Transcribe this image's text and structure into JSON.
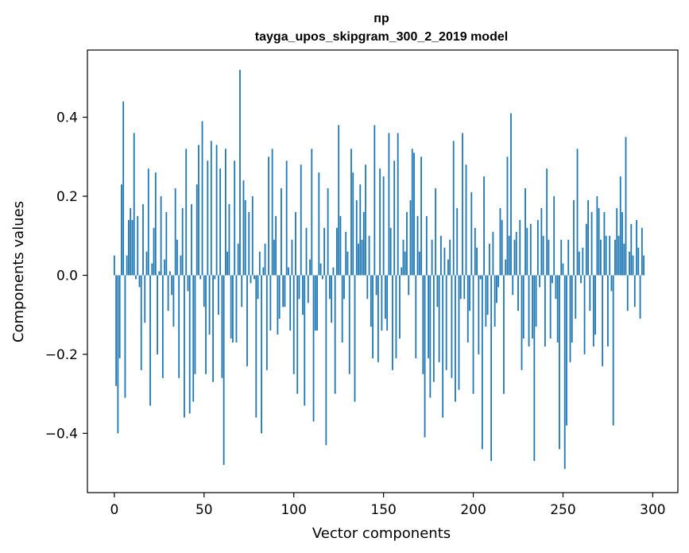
{
  "chart_data": {
    "type": "bar",
    "title": "пр",
    "subtitle": "tayga_upos_skipgram_300_2_2019 model",
    "xlabel": "Vector components",
    "ylabel": "Components values",
    "xlim": [
      -15,
      314
    ],
    "ylim": [
      -0.55,
      0.57
    ],
    "xticks": [
      0,
      50,
      100,
      150,
      200,
      250,
      300
    ],
    "yticks": [
      -0.4,
      -0.2,
      0.0,
      0.2,
      0.4
    ],
    "xtick_labels": [
      "0",
      "50",
      "100",
      "150",
      "200",
      "250",
      "300"
    ],
    "ytick_labels": [
      "−0.4",
      "−0.2",
      "0.0",
      "0.2",
      "0.4"
    ],
    "bar_color": "#1f77b4",
    "grid": false,
    "values": [
      0.05,
      -0.28,
      -0.4,
      -0.21,
      0.23,
      0.44,
      -0.31,
      0.05,
      0.14,
      0.17,
      0.14,
      0.36,
      -0.01,
      0.15,
      -0.03,
      -0.24,
      0.18,
      -0.12,
      0.06,
      0.27,
      -0.33,
      0.03,
      0.12,
      0.26,
      -0.2,
      0.01,
      0.2,
      -0.26,
      0.04,
      0.16,
      -0.09,
      0.01,
      -0.05,
      -0.13,
      0.22,
      0.09,
      -0.26,
      0.05,
      0.17,
      -0.36,
      0.32,
      -0.04,
      -0.35,
      0.18,
      -0.32,
      -0.25,
      0.23,
      0.33,
      -0.01,
      0.39,
      -0.08,
      -0.25,
      0.29,
      -0.15,
      0.34,
      -0.27,
      -0.01,
      0.33,
      -0.1,
      0.27,
      -0.26,
      -0.48,
      0.32,
      0.06,
      0.18,
      -0.16,
      -0.17,
      0.29,
      -0.17,
      0.08,
      0.52,
      -0.08,
      0.24,
      0.19,
      -0.23,
      0.16,
      -0.02,
      0.2,
      -0.01,
      -0.36,
      -0.06,
      0.06,
      -0.4,
      0.02,
      0.08,
      -0.24,
      0.3,
      -0.14,
      0.32,
      0.09,
      0.15,
      -0.15,
      -0.11,
      0.22,
      -0.08,
      -0.08,
      0.29,
      0.02,
      -0.14,
      0.09,
      -0.25,
      0.16,
      -0.3,
      -0.06,
      0.28,
      -0.1,
      -0.33,
      0.12,
      -0.07,
      0.04,
      0.32,
      -0.37,
      -0.14,
      -0.14,
      0.26,
      0.03,
      -0.01,
      0.12,
      -0.43,
      0.22,
      -0.06,
      -0.12,
      0.02,
      -0.3,
      0.12,
      0.38,
      0.15,
      -0.17,
      -0.06,
      0.11,
      0.06,
      -0.25,
      0.32,
      0.26,
      -0.32,
      0.19,
      0.08,
      0.23,
      0.09,
      0.16,
      0.28,
      -0.06,
      0.1,
      -0.13,
      -0.21,
      0.38,
      -0.05,
      -0.22,
      0.27,
      -0.14,
      0.25,
      -0.11,
      -0.14,
      0.36,
      0.12,
      -0.24,
      0.29,
      -0.21,
      0.36,
      -0.16,
      0.02,
      0.09,
      0.06,
      0.16,
      -0.05,
      0.19,
      0.32,
      0.31,
      -0.21,
      0.15,
      0.06,
      0.3,
      -0.25,
      -0.41,
      0.15,
      -0.21,
      -0.31,
      0.09,
      -0.27,
      0.22,
      -0.08,
      -0.22,
      0.1,
      -0.36,
      0.07,
      -0.24,
      0.04,
      0.09,
      -0.26,
      0.34,
      -0.32,
      0.17,
      -0.29,
      -0.06,
      0.36,
      -0.06,
      0.28,
      -0.17,
      -0.09,
      0.21,
      -0.3,
      0.12,
      0.07,
      -0.2,
      -0.01,
      -0.44,
      0.25,
      -0.13,
      -0.1,
      0.08,
      -0.47,
      0.11,
      -0.13,
      -0.07,
      -0.03,
      0.17,
      0.14,
      -0.3,
      0.04,
      0.3,
      0.1,
      0.41,
      -0.05,
      0.09,
      0.11,
      -0.09,
      0.14,
      -0.24,
      -0.16,
      0.22,
      0.12,
      -0.18,
      0.13,
      -0.16,
      -0.47,
      -0.13,
      0.14,
      -0.03,
      0.17,
      0.1,
      -0.18,
      0.27,
      0.09,
      -0.16,
      -0.02,
      0.2,
      -0.06,
      -0.17,
      -0.44,
      0.09,
      0.03,
      -0.49,
      -0.38,
      0.09,
      -0.22,
      -0.17,
      0.19,
      -0.11,
      0.32,
      0.06,
      -0.02,
      0.07,
      -0.2,
      0.13,
      0.19,
      -0.09,
      0.16,
      -0.18,
      -0.15,
      0.2,
      0.17,
      0.09,
      -0.23,
      0.16,
      0.1,
      -0.18,
      0.1,
      -0.04,
      -0.38,
      0.09,
      0.17,
      0.1,
      0.25,
      0.16,
      0.08,
      0.35,
      -0.09,
      0.06,
      0.13,
      0.05,
      -0.08,
      0.14,
      0.07,
      -0.11,
      0.12,
      0.05
    ]
  }
}
